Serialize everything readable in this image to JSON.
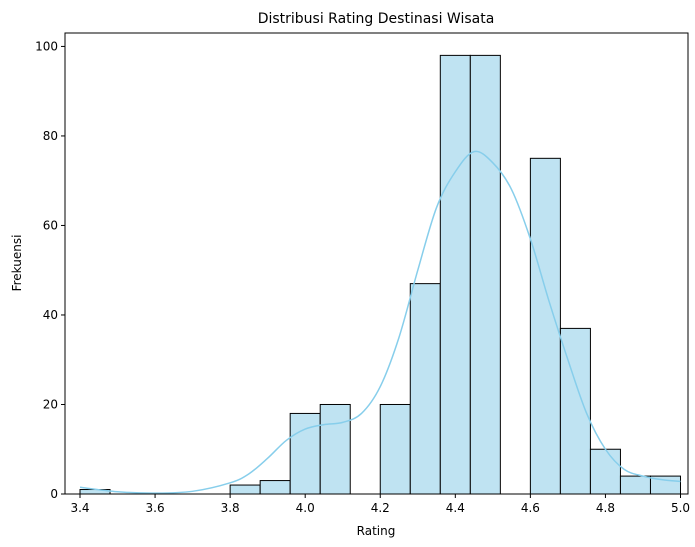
{
  "chart_data": {
    "type": "bar",
    "title": "Distribusi Rating Destinasi Wisata",
    "xlabel": "Rating",
    "ylabel": "Frekuensi",
    "xlim": [
      3.36,
      5.02
    ],
    "ylim": [
      0,
      103
    ],
    "x_ticks": [
      "3.4",
      "3.6",
      "3.8",
      "4.0",
      "4.2",
      "4.4",
      "4.6",
      "4.8",
      "5.0"
    ],
    "y_ticks": [
      "0",
      "20",
      "40",
      "60",
      "80",
      "100"
    ],
    "bins": [
      {
        "start": 3.4,
        "end": 3.48,
        "count": 1
      },
      {
        "start": 3.8,
        "end": 3.88,
        "count": 2
      },
      {
        "start": 3.88,
        "end": 3.96,
        "count": 3
      },
      {
        "start": 3.96,
        "end": 4.04,
        "count": 18
      },
      {
        "start": 4.04,
        "end": 4.12,
        "count": 20
      },
      {
        "start": 4.2,
        "end": 4.28,
        "count": 20
      },
      {
        "start": 4.28,
        "end": 4.36,
        "count": 47
      },
      {
        "start": 4.36,
        "end": 4.44,
        "count": 98
      },
      {
        "start": 4.44,
        "end": 4.52,
        "count": 98
      },
      {
        "start": 4.6,
        "end": 4.68,
        "count": 75
      },
      {
        "start": 4.68,
        "end": 4.76,
        "count": 37
      },
      {
        "start": 4.76,
        "end": 4.84,
        "count": 10
      },
      {
        "start": 4.84,
        "end": 4.92,
        "count": 4
      },
      {
        "start": 4.92,
        "end": 5.0,
        "count": 4
      }
    ],
    "kde": {
      "x": [
        3.4,
        3.5,
        3.6,
        3.7,
        3.8,
        3.85,
        3.9,
        3.95,
        4.0,
        4.05,
        4.1,
        4.15,
        4.2,
        4.25,
        4.3,
        4.35,
        4.4,
        4.45,
        4.5,
        4.55,
        4.6,
        4.65,
        4.7,
        4.75,
        4.8,
        4.85,
        4.9,
        4.95,
        5.0
      ],
      "y": [
        1.5,
        0.5,
        0.2,
        0.6,
        2.5,
        4.5,
        8,
        12,
        14.5,
        15.5,
        16,
        18,
        24,
        35,
        50,
        64,
        72,
        76.5,
        74,
        68,
        57,
        43,
        30,
        18,
        10,
        5.5,
        4,
        3.2,
        2.8
      ]
    },
    "bar_color": "#bfe3f2",
    "bar_edge_color": "#000000",
    "kde_color": "#87ceeb",
    "grid": false,
    "legend": "none"
  }
}
